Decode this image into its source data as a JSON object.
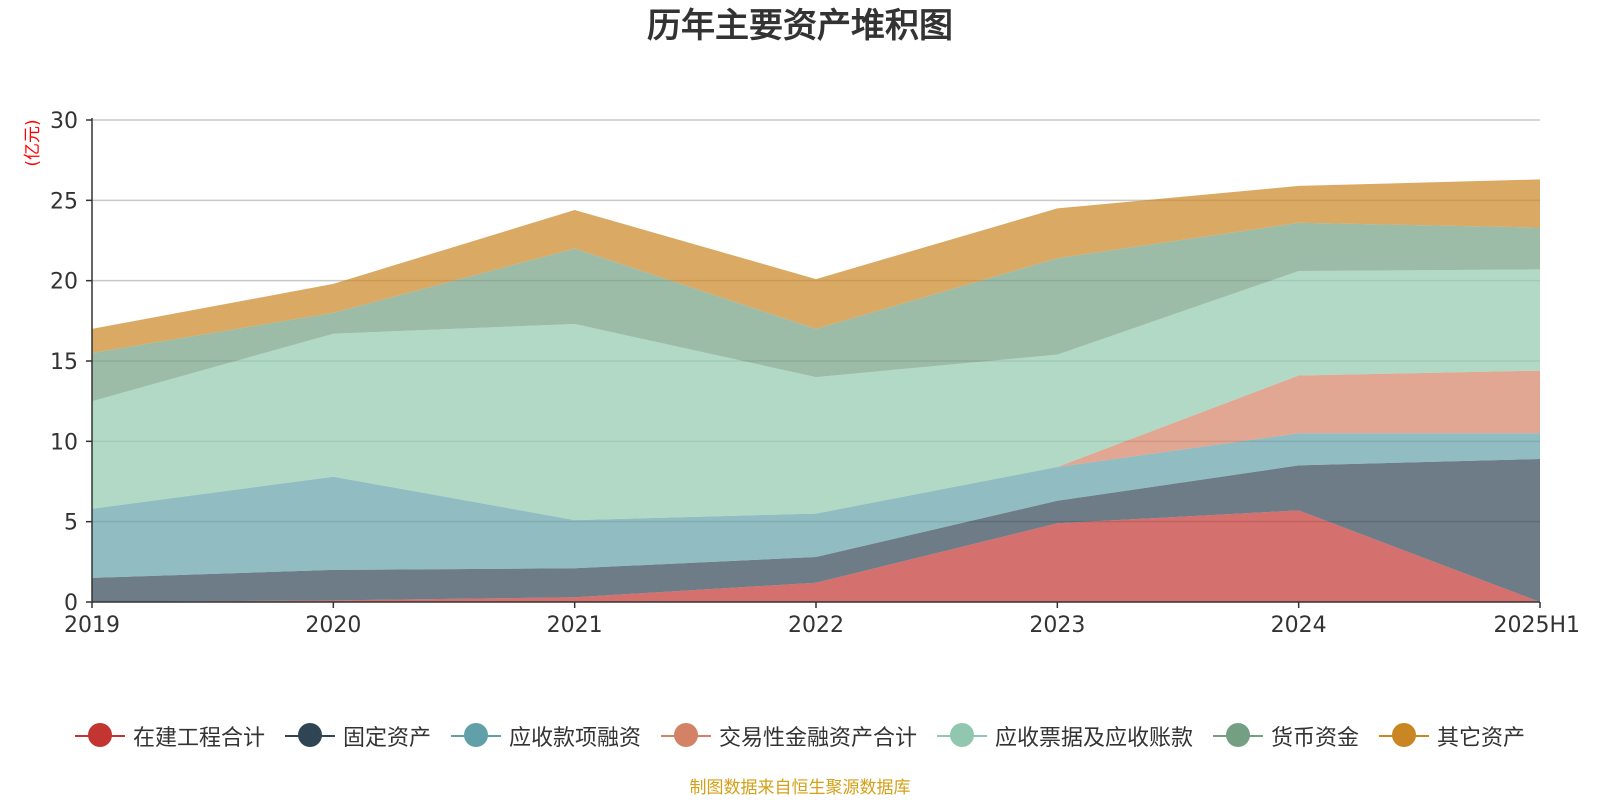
{
  "chart_data": {
    "type": "area",
    "stacked": true,
    "title": "历年主要资产堆积图",
    "ylabel": "(亿元)",
    "xlabel": "",
    "categories": [
      "2019",
      "2020",
      "2021",
      "2022",
      "2023",
      "2024",
      "2025H1"
    ],
    "ylim": [
      0,
      30
    ],
    "yticks": [
      "0",
      "5",
      "10",
      "15",
      "20",
      "25",
      "30"
    ],
    "grid": true,
    "legend_position": "bottom",
    "series": [
      {
        "name": "在建工程合计",
        "color": "#c23531",
        "values": [
          0.0,
          0.1,
          0.3,
          1.2,
          4.9,
          5.7,
          0.0
        ]
      },
      {
        "name": "固定资产",
        "color": "#2f4554",
        "values": [
          1.5,
          1.9,
          1.8,
          1.6,
          1.4,
          2.8,
          8.9
        ]
      },
      {
        "name": "应收款项融资",
        "color": "#61a0a8",
        "values": [
          4.3,
          5.8,
          3.0,
          2.7,
          2.1,
          2.0,
          1.6
        ]
      },
      {
        "name": "交易性金融资产合计",
        "color": "#d48265",
        "values": [
          0.0,
          0.0,
          0.0,
          0.0,
          0.0,
          3.6,
          3.9
        ]
      },
      {
        "name": "应收票据及应收账款",
        "color": "#91c7ae",
        "values": [
          6.7,
          8.9,
          12.2,
          8.5,
          7.0,
          6.5,
          6.3
        ]
      },
      {
        "name": "货币资金",
        "color": "#749f83",
        "values": [
          3.0,
          1.3,
          4.7,
          3.0,
          6.0,
          3.0,
          2.6
        ]
      },
      {
        "name": "其它资产",
        "color": "#ca8622",
        "values": [
          1.5,
          1.8,
          2.4,
          3.1,
          3.1,
          2.3,
          3.0
        ]
      }
    ]
  },
  "source_note": "制图数据来自恒生聚源数据库"
}
